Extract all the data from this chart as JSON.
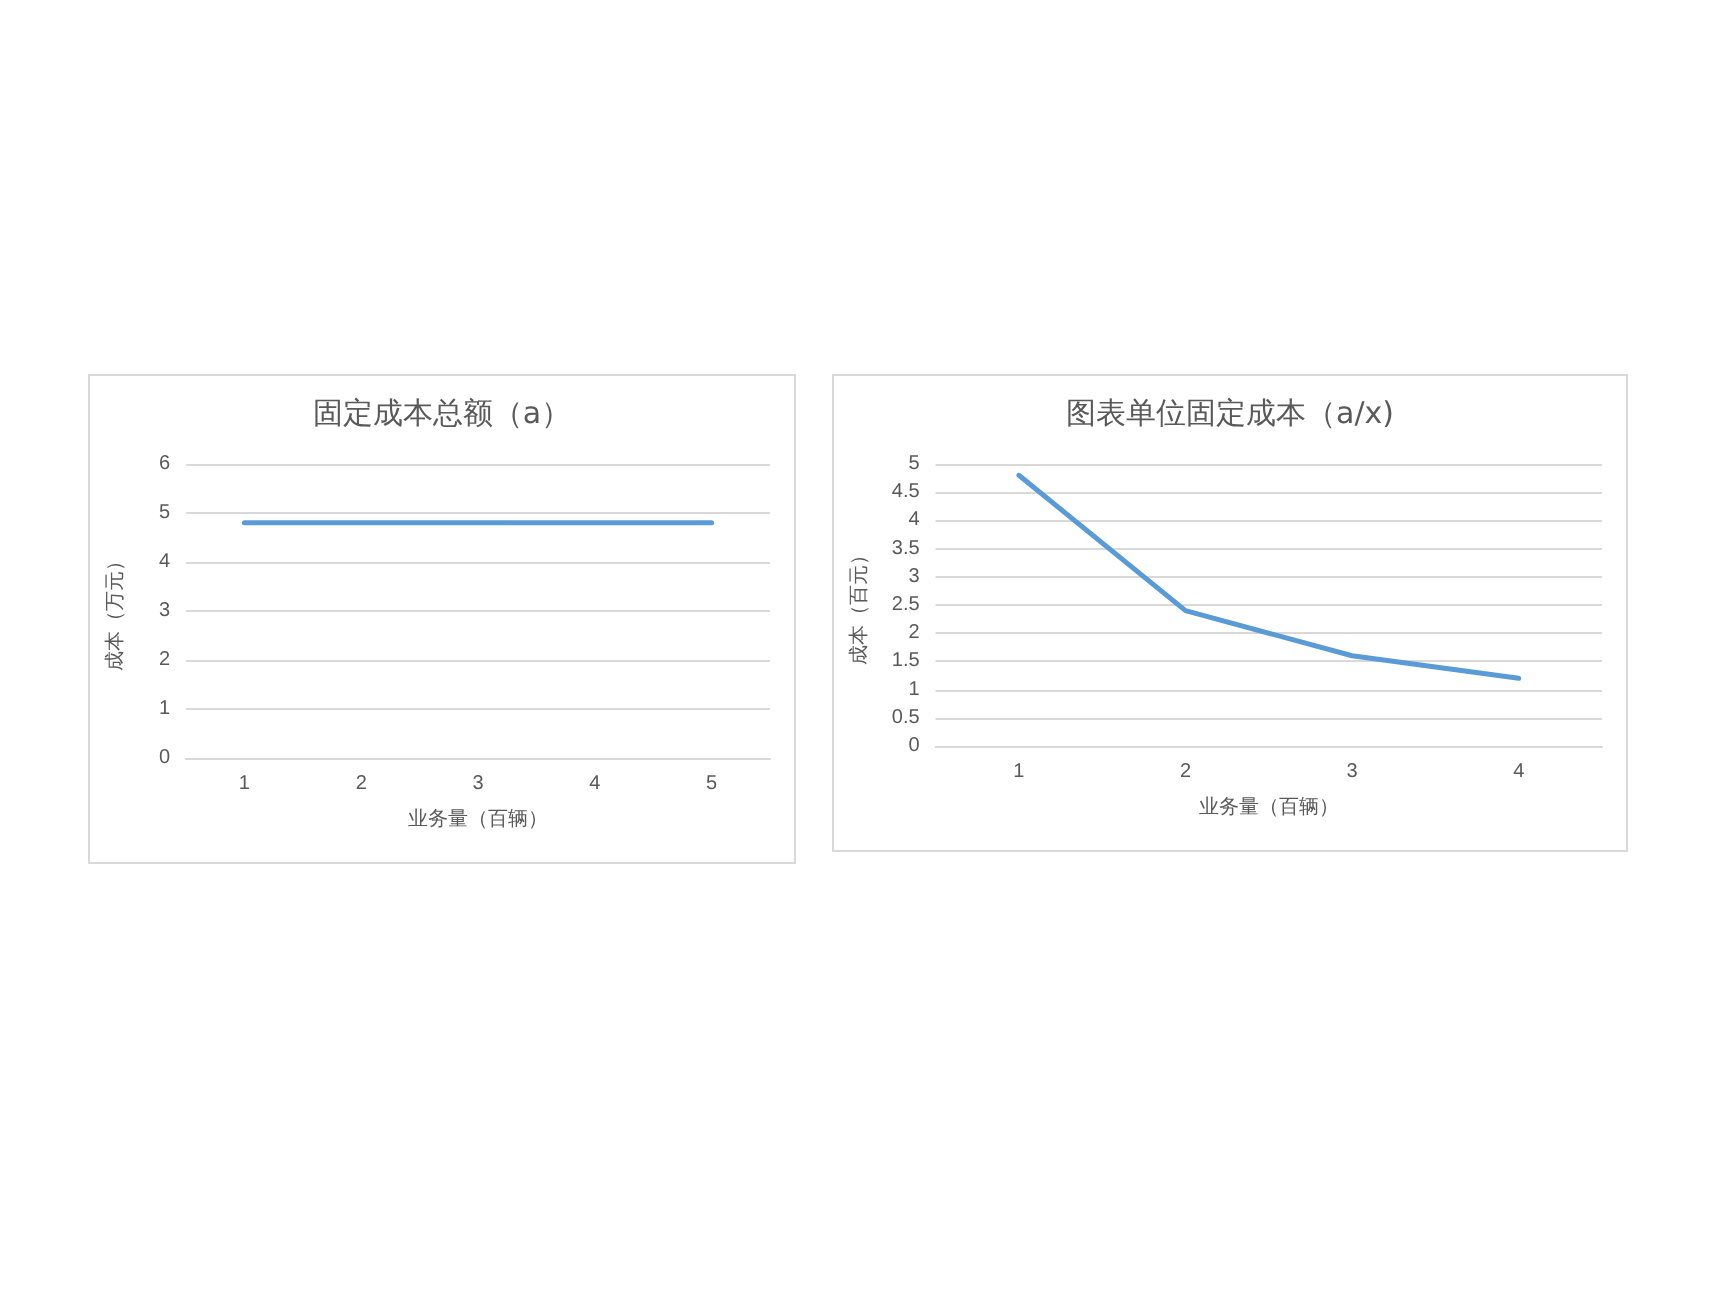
{
  "chart_data": [
    {
      "type": "line",
      "title": "固定成本总额（a）",
      "xlabel": "业务量（百辆）",
      "ylabel": "成本（万元）",
      "categories": [
        "1",
        "2",
        "3",
        "4",
        "5"
      ],
      "series": [
        {
          "color": "#5b9bd5",
          "values": [
            4.8,
            4.8,
            4.8,
            4.8,
            4.8
          ]
        }
      ],
      "ylim": [
        0,
        6
      ],
      "yticks": [
        0,
        1,
        2,
        3,
        4,
        5,
        6
      ],
      "grid": "y",
      "marker": "none"
    },
    {
      "type": "line",
      "title": "图表单位固定成本（a/x)",
      "xlabel": "业务量（百辆）",
      "ylabel": "成本（百元）",
      "categories": [
        "1",
        "2",
        "3",
        "4"
      ],
      "series": [
        {
          "color": "#5b9bd5",
          "values": [
            4.8,
            2.4,
            1.6,
            1.2
          ]
        }
      ],
      "ylim": [
        0,
        5
      ],
      "yticks": [
        0,
        0.5,
        1,
        1.5,
        2,
        2.5,
        3,
        3.5,
        4,
        4.5,
        5
      ],
      "grid": "y",
      "marker": "none"
    }
  ]
}
